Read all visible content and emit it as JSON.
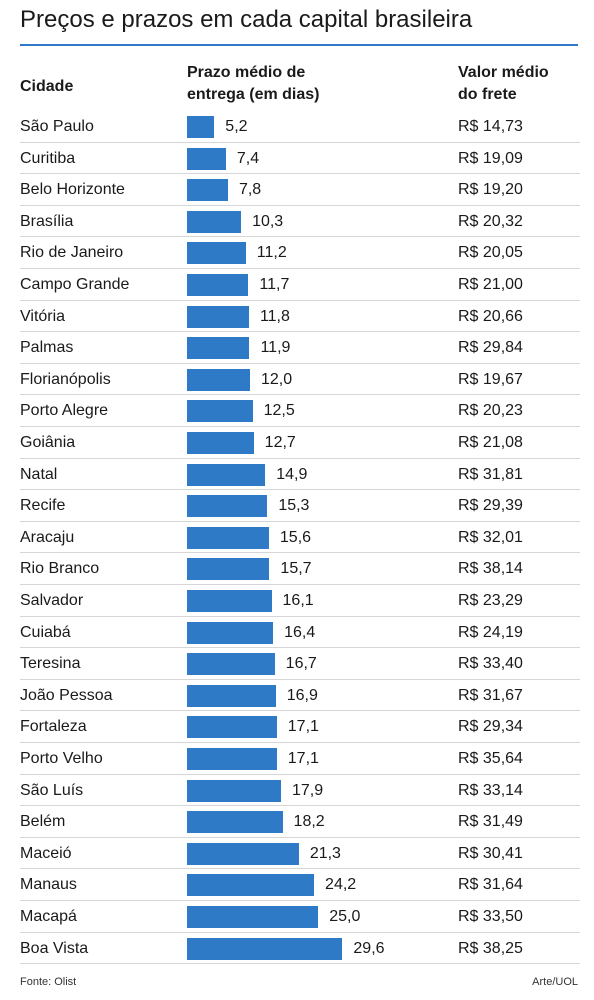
{
  "header": {
    "title": "Preços e prazos em cada capital brasileira",
    "col_city": "Cidade",
    "col_prazo_1": "Prazo médio de",
    "col_prazo_2": "entrega (em dias)",
    "col_frete_1": "Valor médio",
    "col_frete_2": "do frete"
  },
  "chart_data": {
    "type": "bar",
    "title": "Preços e prazos em cada capital brasileira",
    "categories": [
      "São Paulo",
      "Curitiba",
      "Belo Horizonte",
      "Brasília",
      "Rio de Janeiro",
      "Campo Grande",
      "Vitória",
      "Palmas",
      "Florianópolis",
      "Porto Alegre",
      "Goiânia",
      "Natal",
      "Recife",
      "Aracaju",
      "Rio Branco",
      "Salvador",
      "Cuiabá",
      "Teresina",
      "João Pessoa",
      "Fortaleza",
      "Porto Velho",
      "São Luís",
      "Belém",
      "Maceió",
      "Manaus",
      "Macapá",
      "Boa Vista"
    ],
    "values": [
      5.2,
      7.4,
      7.8,
      10.3,
      11.2,
      11.7,
      11.8,
      11.9,
      12.0,
      12.5,
      12.7,
      14.9,
      15.3,
      15.6,
      15.7,
      16.1,
      16.4,
      16.7,
      16.9,
      17.1,
      17.1,
      17.9,
      18.2,
      21.3,
      24.2,
      25.0,
      29.6
    ],
    "value_labels": [
      "5,2",
      "7,4",
      "7,8",
      "10,3",
      "11,2",
      "11,7",
      "11,8",
      "11,9",
      "12,0",
      "12,5",
      "12,7",
      "14,9",
      "15,3",
      "15,6",
      "15,7",
      "16,1",
      "16,4",
      "16,7",
      "16,9",
      "17,1",
      "17,1",
      "17,9",
      "18,2",
      "21,3",
      "24,2",
      "25,0",
      "29,6"
    ],
    "frete": [
      "R$ 14,73",
      "R$ 19,09",
      "R$ 19,20",
      "R$ 20,32",
      "R$ 20,05",
      "R$ 21,00",
      "R$ 20,66",
      "R$ 29,84",
      "R$ 19,67",
      "R$ 20,23",
      "R$ 21,08",
      "R$ 31,81",
      "R$ 29,39",
      "R$ 32,01",
      "R$ 38,14",
      "R$ 23,29",
      "R$ 24,19",
      "R$ 33,40",
      "R$ 31,67",
      "R$ 29,34",
      "R$ 35,64",
      "R$ 33,14",
      "R$ 31,49",
      "R$ 30,41",
      "R$ 31,64",
      "R$ 33,50",
      "R$ 38,25"
    ],
    "bar_color": "#2f7ac6"
  },
  "footer": {
    "source": "Fonte: Olist",
    "credit": "Arte/UOL"
  }
}
